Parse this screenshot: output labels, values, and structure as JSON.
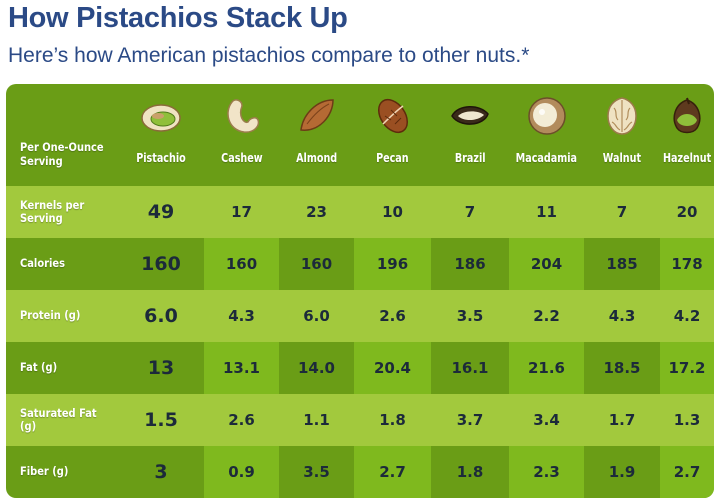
{
  "header": {
    "title": "How Pistachios Stack Up",
    "subtitle": "Here’s how American pistachios compare to other nuts.*"
  },
  "chart_data": {
    "type": "table",
    "corner_label": "Per One-Ounce Serving",
    "columns": [
      "Pistachio",
      "Cashew",
      "Almond",
      "Pecan",
      "Brazil",
      "Macadamia",
      "Walnut",
      "Hazelnut"
    ],
    "icons": [
      "pistachio-icon",
      "cashew-icon",
      "almond-icon",
      "pecan-icon",
      "brazil-nut-icon",
      "macadamia-icon",
      "walnut-icon",
      "hazelnut-icon"
    ],
    "rows": [
      {
        "label": "Kernels per Serving",
        "values": [
          "49",
          "17",
          "23",
          "10",
          "7",
          "11",
          "7",
          "20"
        ]
      },
      {
        "label": "Calories",
        "values": [
          "160",
          "160",
          "160",
          "196",
          "186",
          "204",
          "185",
          "178"
        ]
      },
      {
        "label": "Protein (g)",
        "values": [
          "6.0",
          "4.3",
          "6.0",
          "2.6",
          "3.5",
          "2.2",
          "4.3",
          "4.2"
        ]
      },
      {
        "label": "Fat (g)",
        "values": [
          "13",
          "13.1",
          "14.0",
          "20.4",
          "16.1",
          "21.6",
          "18.5",
          "17.2"
        ]
      },
      {
        "label": "Saturated Fat (g)",
        "values": [
          "1.5",
          "2.6",
          "1.1",
          "1.8",
          "3.7",
          "3.4",
          "1.7",
          "1.3"
        ]
      },
      {
        "label": "Fiber (g)",
        "values": [
          "3",
          "0.9",
          "3.5",
          "2.7",
          "1.8",
          "2.3",
          "1.9",
          "2.7"
        ]
      }
    ],
    "colors": {
      "title": "#2b4a86",
      "panel_dark": "#6a9d16",
      "band_light": "#a2c93d",
      "column_medium": "#7fb91e",
      "value_text": "#1c2a3a"
    }
  }
}
